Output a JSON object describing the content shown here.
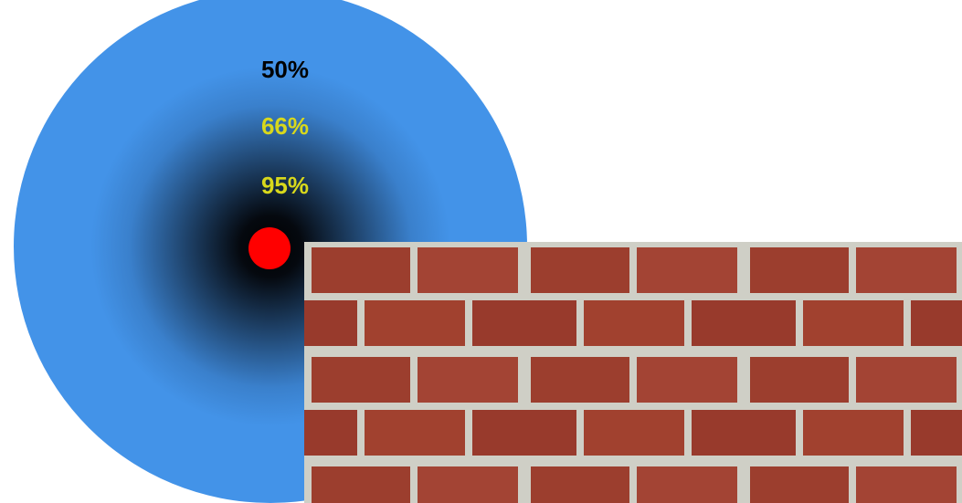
{
  "labels": [
    "50%",
    "66%",
    "95%"
  ]
}
